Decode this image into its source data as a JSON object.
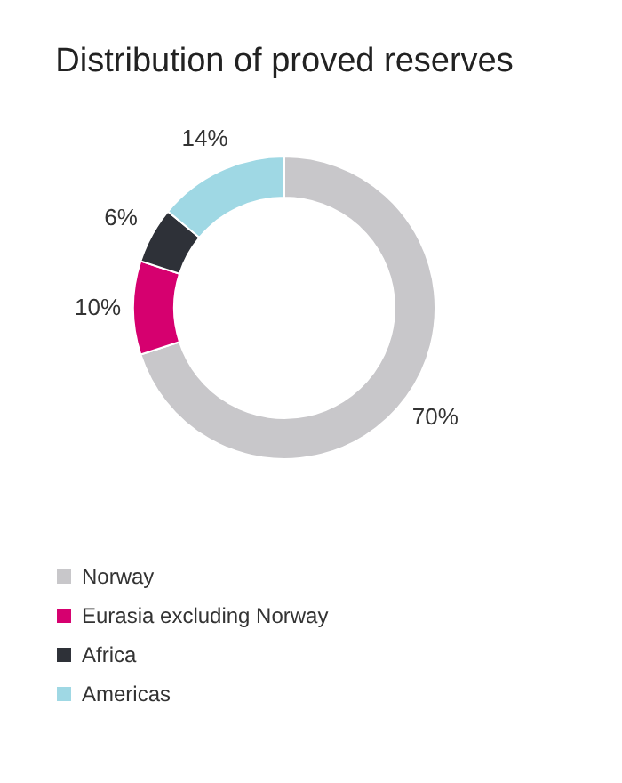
{
  "chart_data": {
    "type": "donut",
    "title": "Distribution of proved reserves",
    "categories": [
      "Norway",
      "Eurasia excluding Norway",
      "Africa",
      "Americas"
    ],
    "values": [
      70,
      10,
      6,
      14
    ],
    "colors": [
      "#c8c7ca",
      "#d6006f",
      "#2e3138",
      "#9fd8e4"
    ],
    "value_labels": [
      "70%",
      "10%",
      "6%",
      "14%"
    ],
    "legend": "bottom left"
  }
}
